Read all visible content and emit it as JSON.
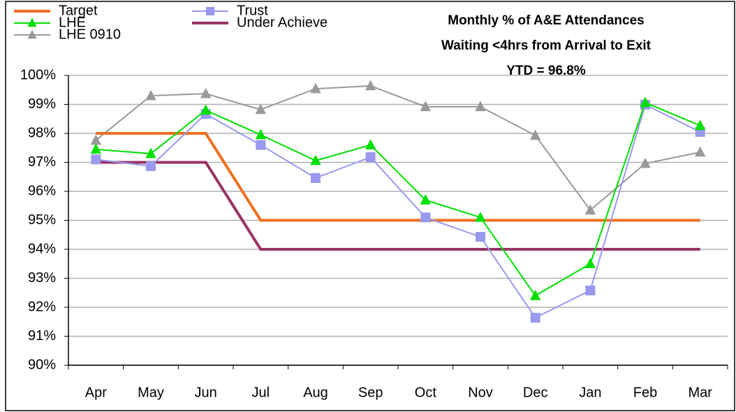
{
  "chart_data": {
    "type": "line",
    "title": [
      "Monthly % of A&E Attendances",
      "Waiting <4hrs from Arrival to Exit",
      "YTD = 96.8%"
    ],
    "categories": [
      "Apr",
      "May",
      "Jun",
      "Jul",
      "Aug",
      "Sep",
      "Oct",
      "Nov",
      "Dec",
      "Jan",
      "Feb",
      "Mar"
    ],
    "series": [
      {
        "name": "Target",
        "color": "#f07020",
        "marker": null,
        "values": [
          98,
          98,
          98,
          95,
          95,
          95,
          95,
          95,
          95,
          95,
          95,
          95
        ]
      },
      {
        "name": "LHE",
        "color": "#00e000",
        "marker": "triangle",
        "values": [
          97.45,
          97.3,
          98.8,
          97.95,
          97.06,
          97.6,
          95.7,
          95.1,
          92.4,
          93.5,
          99.06,
          98.27
        ]
      },
      {
        "name": "LHE 0910",
        "color": "#999999",
        "marker": "triangle",
        "values": [
          97.76,
          99.3,
          99.37,
          98.82,
          99.54,
          99.64,
          98.92,
          98.92,
          97.93,
          95.35,
          96.96,
          97.35
        ]
      },
      {
        "name": "Trust",
        "color": "#9999ee",
        "marker": "square",
        "values": [
          97.1,
          96.87,
          98.67,
          97.6,
          96.46,
          97.18,
          95.1,
          94.43,
          91.64,
          92.58,
          98.99,
          98.05
        ]
      },
      {
        "name": "Under Achieve",
        "color": "#993366",
        "marker": null,
        "values": [
          97,
          97,
          97,
          94,
          94,
          94,
          94,
          94,
          94,
          94,
          94,
          94
        ]
      }
    ],
    "ylim": [
      90,
      100
    ],
    "yticks": [
      {
        "value": 90,
        "label": "90%"
      },
      {
        "value": 91,
        "label": "91%"
      },
      {
        "value": 92,
        "label": "92%"
      },
      {
        "value": 93,
        "label": "93%"
      },
      {
        "value": 94,
        "label": "94%"
      },
      {
        "value": 95,
        "label": "95%"
      },
      {
        "value": 96,
        "label": "96%"
      },
      {
        "value": 97,
        "label": "97%"
      },
      {
        "value": 98,
        "label": "98%"
      },
      {
        "value": 99,
        "label": "99%"
      },
      {
        "value": 100,
        "label": "100%"
      }
    ],
    "grid": true,
    "legend": "top-left"
  }
}
